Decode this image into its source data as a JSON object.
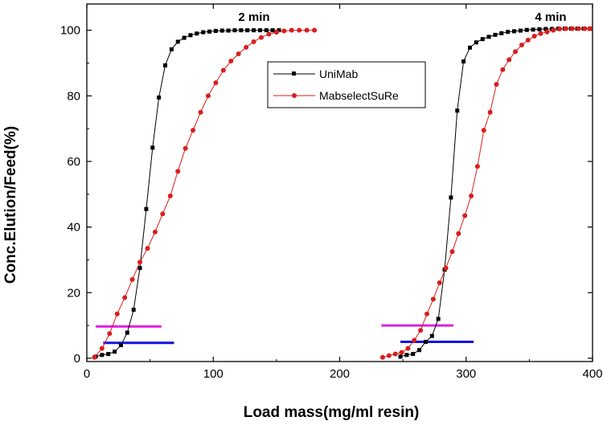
{
  "chart_data": {
    "type": "line",
    "title": "",
    "xlabel": "Load mass(mg/ml resin)",
    "ylabel": "Conc.Elution/Feed(%)",
    "xlim": [
      0,
      400
    ],
    "ylim": [
      -1,
      108
    ],
    "x_ticks": [
      0,
      100,
      200,
      300,
      400
    ],
    "y_ticks": [
      0,
      20,
      40,
      60,
      80,
      100
    ],
    "grid": false,
    "legend_position": "center-top",
    "annotations": [
      "2 min",
      "4 min"
    ],
    "series": [
      {
        "name": "UniMab",
        "color": "#000000",
        "marker": "square",
        "segments": [
          {
            "x": [
              7,
              12,
              17,
              22,
              27,
              32,
              37,
              42,
              47,
              52,
              57,
              62,
              67,
              72,
              77,
              82,
              87,
              92,
              97,
              102,
              107,
              112,
              117,
              122,
              127,
              132,
              137,
              142,
              147,
              152
            ],
            "y": [
              0.5,
              1.0,
              1.3,
              2.0,
              4.0,
              7.8,
              14.8,
              27.5,
              45.5,
              64.2,
              79.5,
              89.3,
              94.2,
              96.5,
              97.7,
              98.5,
              99.0,
              99.4,
              99.6,
              99.8,
              99.9,
              99.9,
              100.0,
              100.0,
              100.0,
              100.0,
              100.0,
              100.0,
              100.0,
              100.0
            ]
          },
          {
            "x": [
              248,
              253,
              258,
              263,
              268,
              273,
              278,
              283,
              288,
              293,
              298,
              303,
              308,
              313,
              318,
              323,
              328,
              333,
              338,
              343,
              348,
              353,
              358,
              363,
              368,
              373,
              378,
              383,
              388,
              393,
              398
            ],
            "y": [
              0.5,
              1.0,
              1.3,
              2.5,
              5.0,
              6.8,
              12.0,
              27.0,
              49.0,
              75.5,
              90.5,
              94.7,
              96.3,
              97.3,
              98.0,
              98.6,
              99.1,
              99.5,
              99.7,
              99.9,
              100.1,
              100.2,
              100.3,
              100.4,
              100.4,
              100.5,
              100.5,
              100.5,
              100.5,
              100.5,
              100.5
            ]
          }
        ]
      },
      {
        "name": "MabselectSuRe",
        "color": "#d81e1e",
        "marker": "circle",
        "segments": [
          {
            "x": [
              6,
              12,
              18,
              24,
              30,
              36,
              42,
              48,
              54,
              60,
              66,
              72,
              78,
              84,
              90,
              96,
              102,
              108,
              114,
              120,
              126,
              132,
              138,
              144,
              150,
              156,
              162,
              168,
              174,
              180
            ],
            "y": [
              0.3,
              3.0,
              7.5,
              13.5,
              18.5,
              24.0,
              29.3,
              33.5,
              38.5,
              44.0,
              49.5,
              57.0,
              64.0,
              69.5,
              75.0,
              80.0,
              84.0,
              87.8,
              90.6,
              92.8,
              94.8,
              96.5,
              97.8,
              98.8,
              99.4,
              99.8,
              100.0,
              100.0,
              100.0,
              100.0
            ]
          },
          {
            "x": [
              234,
              239,
              244,
              249,
              254,
              259,
              264,
              269,
              274,
              279,
              284,
              289,
              294,
              299,
              304,
              309,
              314,
              319,
              324,
              329,
              334,
              339,
              344,
              349,
              354,
              359,
              364,
              369,
              374,
              379,
              384,
              389,
              394,
              398
            ],
            "y": [
              0.3,
              0.8,
              1.3,
              1.8,
              3.0,
              5.5,
              8.5,
              13.5,
              18.0,
              23.0,
              27.5,
              32.5,
              38.0,
              43.5,
              49.5,
              58.5,
              69.5,
              75.0,
              83.5,
              88.0,
              91.0,
              93.5,
              95.5,
              97.0,
              98.2,
              99.0,
              99.5,
              100.0,
              100.4,
              100.5,
              100.5,
              100.5,
              100.5,
              100.5
            ]
          }
        ]
      }
    ],
    "threshold_bars": [
      {
        "color": "#e020e0",
        "x1": 7,
        "x2": 59,
        "y": 9.7
      },
      {
        "color": "#1010e0",
        "x1": 13,
        "x2": 69,
        "y": 4.7
      },
      {
        "color": "#e020e0",
        "x1": 233,
        "x2": 290,
        "y": 10.0
      },
      {
        "color": "#1010e0",
        "x1": 248,
        "x2": 306,
        "y": 5.0
      }
    ]
  }
}
